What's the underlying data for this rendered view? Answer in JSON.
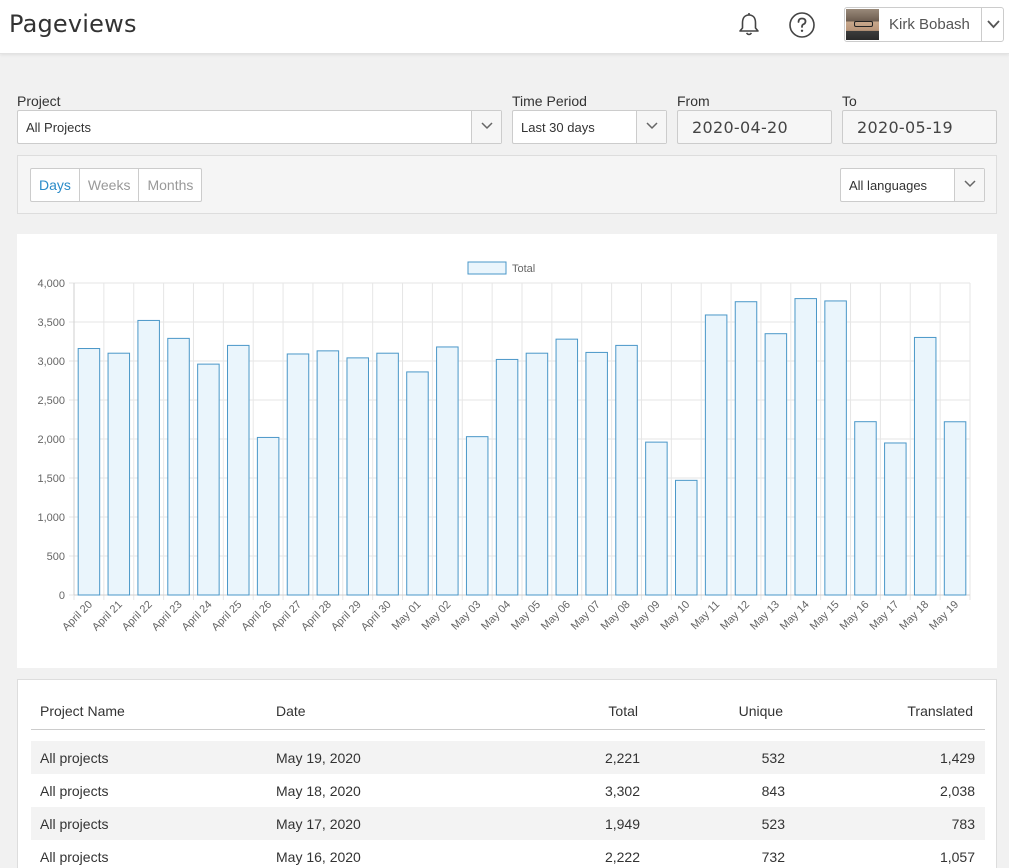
{
  "header": {
    "title": "Pageviews",
    "user_name": "Kirk Bobash",
    "icons": [
      "bell-icon",
      "help-icon",
      "chevron-down-icon"
    ]
  },
  "filters": {
    "project_label": "Project",
    "project_value": "All Projects",
    "time_period_label": "Time Period",
    "time_period_value": "Last 30 days",
    "from_label": "From",
    "from_value": "2020-04-20",
    "to_label": "To",
    "to_value": "2020-05-19",
    "granularity": [
      "Days",
      "Weeks",
      "Months"
    ],
    "granularity_selected": "Days",
    "language_value": "All languages"
  },
  "colors": {
    "accent": "#2a8bc8",
    "bar_fill": "#eaf5fc",
    "bar_stroke": "#4a97c8"
  },
  "chart_data": {
    "type": "bar",
    "legend": [
      "Total"
    ],
    "legend_position": "top-center",
    "grid": true,
    "ylim": [
      0,
      4000
    ],
    "yticks": [
      "0",
      "500",
      "1,000",
      "1,500",
      "2,000",
      "2,500",
      "3,000",
      "3,500",
      "4,000"
    ],
    "categories": [
      "April 20",
      "April 21",
      "April 22",
      "April 23",
      "April 24",
      "April 25",
      "April 26",
      "April 27",
      "April 28",
      "April 29",
      "April 30",
      "May 01",
      "May 02",
      "May 03",
      "May 04",
      "May 05",
      "May 06",
      "May 07",
      "May 08",
      "May 09",
      "May 10",
      "May 11",
      "May 12",
      "May 13",
      "May 14",
      "May 15",
      "May 16",
      "May 17",
      "May 18",
      "May 19"
    ],
    "series": [
      {
        "name": "Total",
        "values": [
          3160,
          3100,
          3520,
          3290,
          2960,
          3200,
          2020,
          3090,
          3130,
          3040,
          3100,
          2860,
          3180,
          2030,
          3020,
          3100,
          3280,
          3110,
          3200,
          1960,
          1470,
          3590,
          3760,
          3350,
          3800,
          3770,
          2222,
          1949,
          3302,
          2221
        ]
      }
    ]
  },
  "table": {
    "headers": [
      "Project Name",
      "Date",
      "Total",
      "Unique",
      "Translated"
    ],
    "rows": [
      [
        "All projects",
        "May 19, 2020",
        "2,221",
        "532",
        "1,429"
      ],
      [
        "All projects",
        "May 18, 2020",
        "3,302",
        "843",
        "2,038"
      ],
      [
        "All projects",
        "May 17, 2020",
        "1,949",
        "523",
        "783"
      ],
      [
        "All projects",
        "May 16, 2020",
        "2,222",
        "732",
        "1,057"
      ]
    ]
  }
}
